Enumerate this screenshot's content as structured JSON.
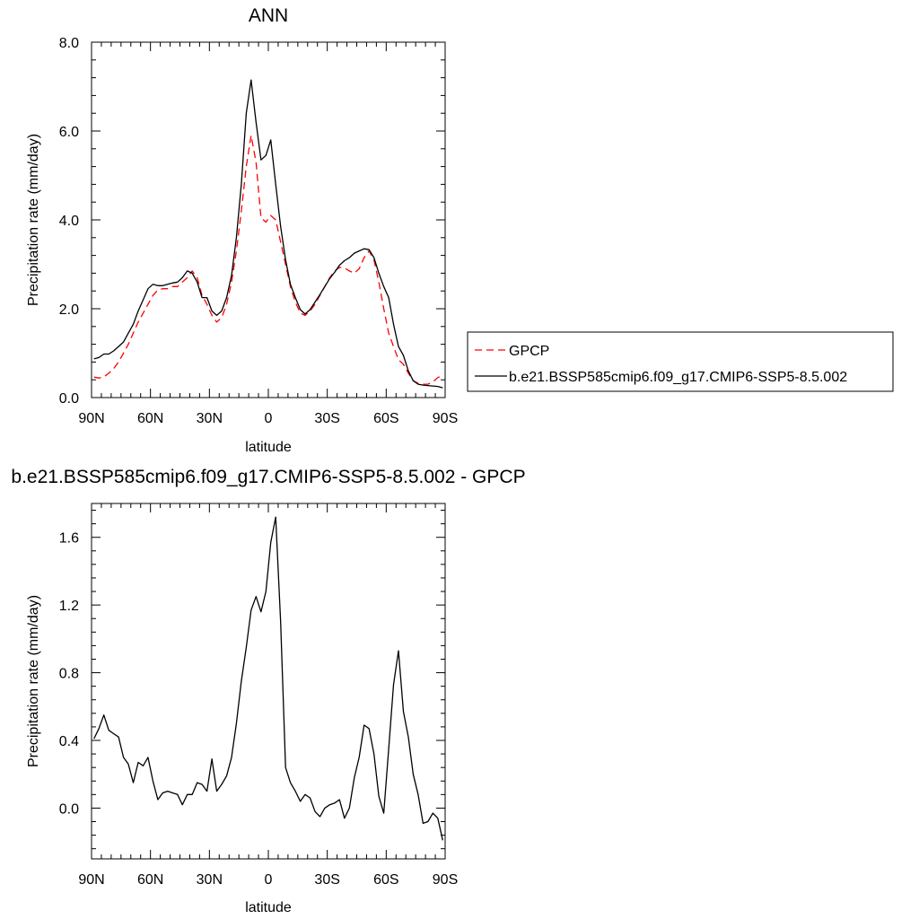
{
  "chart_data": [
    {
      "type": "line",
      "title": "ANN",
      "xlabel": "latitude",
      "ylabel": "Precipitation rate (mm/day)",
      "xlim": [
        90,
        -90
      ],
      "ylim": [
        0,
        8
      ],
      "x_tick_values": [
        90,
        60,
        30,
        0,
        -30,
        -60,
        -90
      ],
      "x_tick_labels": [
        "90N",
        "60N",
        "30N",
        "0",
        "30S",
        "60S",
        "90S"
      ],
      "y_tick_values": [
        0,
        2,
        4,
        6,
        8
      ],
      "y_tick_labels": [
        "0.0",
        "2.0",
        "4.0",
        "6.0",
        "8.0"
      ],
      "grid": false,
      "legend_position": "right",
      "series": [
        {
          "name": "GPCP",
          "color": "#ff0000",
          "style": "dashed",
          "x": [
            88.75,
            86.25,
            83.75,
            81.25,
            78.75,
            76.25,
            73.75,
            71.25,
            68.75,
            66.25,
            63.75,
            61.25,
            58.75,
            56.25,
            53.75,
            51.25,
            48.75,
            46.25,
            43.75,
            41.25,
            38.75,
            36.25,
            33.75,
            31.25,
            28.75,
            26.25,
            23.75,
            21.25,
            18.75,
            16.25,
            13.75,
            11.25,
            8.75,
            6.25,
            3.75,
            1.25,
            -1.25,
            -3.75,
            -6.25,
            -8.75,
            -11.25,
            -13.75,
            -16.25,
            -18.75,
            -21.25,
            -23.75,
            -26.25,
            -28.75,
            -31.25,
            -33.75,
            -36.25,
            -38.75,
            -41.25,
            -43.75,
            -46.25,
            -48.75,
            -51.25,
            -53.75,
            -56.25,
            -58.75,
            -61.25,
            -63.75,
            -66.25,
            -68.75,
            -71.25,
            -73.75,
            -76.25,
            -78.75,
            -81.25,
            -83.75,
            -86.25,
            -88.75
          ],
          "values": [
            0.46,
            0.44,
            0.46,
            0.55,
            0.65,
            0.8,
            1.0,
            1.2,
            1.45,
            1.7,
            1.9,
            2.1,
            2.3,
            2.42,
            2.45,
            2.45,
            2.5,
            2.5,
            2.6,
            2.7,
            2.85,
            2.7,
            2.3,
            2.1,
            1.85,
            1.7,
            1.8,
            2.1,
            2.6,
            3.3,
            4.2,
            5.2,
            5.9,
            5.3,
            4.05,
            3.95,
            4.1,
            4.0,
            3.5,
            3.0,
            2.5,
            2.15,
            1.9,
            1.85,
            1.95,
            2.1,
            2.3,
            2.5,
            2.7,
            2.85,
            2.93,
            2.92,
            2.85,
            2.8,
            2.9,
            3.15,
            3.3,
            3.1,
            2.6,
            2.0,
            1.45,
            1.15,
            0.85,
            0.75,
            0.55,
            0.38,
            0.32,
            0.3,
            0.3,
            0.35,
            0.45,
            0.5
          ]
        },
        {
          "name": "b.e21.BSSP585cmip6.f09_g17.CMIP6-SSP5-8.5.002",
          "color": "#000000",
          "style": "solid",
          "x": [
            88.75,
            86.25,
            83.75,
            81.25,
            78.75,
            76.25,
            73.75,
            71.25,
            68.75,
            66.25,
            63.75,
            61.25,
            58.75,
            56.25,
            53.75,
            51.25,
            48.75,
            46.25,
            43.75,
            41.25,
            38.75,
            36.25,
            33.75,
            31.25,
            28.75,
            26.25,
            23.75,
            21.25,
            18.75,
            16.25,
            13.75,
            11.25,
            8.75,
            6.25,
            3.75,
            1.25,
            -1.25,
            -3.75,
            -6.25,
            -8.75,
            -11.25,
            -13.75,
            -16.25,
            -18.75,
            -21.25,
            -23.75,
            -26.25,
            -28.75,
            -31.25,
            -33.75,
            -36.25,
            -38.75,
            -41.25,
            -43.75,
            -46.25,
            -48.75,
            -51.25,
            -53.75,
            -56.25,
            -58.75,
            -61.25,
            -63.75,
            -66.25,
            -68.75,
            -71.25,
            -73.75,
            -76.25,
            -78.75,
            -81.25,
            -83.75,
            -86.25,
            -88.75
          ],
          "values": [
            0.87,
            0.9,
            0.98,
            0.98,
            1.05,
            1.15,
            1.25,
            1.45,
            1.65,
            1.95,
            2.2,
            2.45,
            2.55,
            2.52,
            2.52,
            2.55,
            2.58,
            2.6,
            2.7,
            2.85,
            2.8,
            2.6,
            2.25,
            2.25,
            1.95,
            1.85,
            1.95,
            2.25,
            2.75,
            3.6,
            4.8,
            6.4,
            7.15,
            6.2,
            5.35,
            5.45,
            5.8,
            4.8,
            3.85,
            3.1,
            2.55,
            2.25,
            1.98,
            1.88,
            1.98,
            2.15,
            2.32,
            2.5,
            2.68,
            2.82,
            2.98,
            3.08,
            3.15,
            3.25,
            3.3,
            3.35,
            3.33,
            3.15,
            2.8,
            2.5,
            2.25,
            1.65,
            1.15,
            0.95,
            0.6,
            0.38,
            0.3,
            0.28,
            0.27,
            0.26,
            0.25,
            0.22
          ]
        }
      ]
    },
    {
      "type": "line",
      "title": "b.e21.BSSP585cmip6.f09_g17.CMIP6-SSP5-8.5.002 - GPCP",
      "xlabel": "latitude",
      "ylabel": "Precipitation rate (mm/day)",
      "xlim": [
        90,
        -90
      ],
      "ylim": [
        -0.3,
        1.8
      ],
      "x_tick_values": [
        90,
        60,
        30,
        0,
        -30,
        -60,
        -90
      ],
      "x_tick_labels": [
        "90N",
        "60N",
        "30N",
        "0",
        "30S",
        "60S",
        "90S"
      ],
      "y_tick_values": [
        0,
        0.4,
        0.8,
        1.2,
        1.6
      ],
      "y_tick_labels": [
        "0.0",
        "0.4",
        "0.8",
        "1.2",
        "1.6"
      ],
      "grid": false,
      "series": [
        {
          "color": "#000000",
          "style": "solid",
          "x": [
            88.75,
            86.25,
            83.75,
            81.25,
            78.75,
            76.25,
            73.75,
            71.25,
            68.75,
            66.25,
            63.75,
            61.25,
            58.75,
            56.25,
            53.75,
            51.25,
            48.75,
            46.25,
            43.75,
            41.25,
            38.75,
            36.25,
            33.75,
            31.25,
            28.75,
            26.25,
            23.75,
            21.25,
            18.75,
            16.25,
            13.75,
            11.25,
            8.75,
            6.25,
            3.75,
            1.25,
            -1.25,
            -3.75,
            -6.25,
            -8.75,
            -11.25,
            -13.75,
            -16.25,
            -18.75,
            -21.25,
            -23.75,
            -26.25,
            -28.75,
            -31.25,
            -33.75,
            -36.25,
            -38.75,
            -41.25,
            -43.75,
            -46.25,
            -48.75,
            -51.25,
            -53.75,
            -56.25,
            -58.75,
            -61.25,
            -63.75,
            -66.25,
            -68.75,
            -71.25,
            -73.75,
            -76.25,
            -78.75,
            -81.25,
            -83.75,
            -86.25,
            -88.75
          ],
          "values": [
            0.41,
            0.47,
            0.55,
            0.46,
            0.44,
            0.42,
            0.3,
            0.26,
            0.15,
            0.27,
            0.25,
            0.3,
            0.16,
            0.05,
            0.09,
            0.1,
            0.09,
            0.08,
            0.02,
            0.08,
            0.08,
            0.15,
            0.14,
            0.1,
            0.29,
            0.1,
            0.14,
            0.19,
            0.3,
            0.5,
            0.75,
            0.95,
            1.17,
            1.25,
            1.16,
            1.28,
            1.57,
            1.72,
            1.1,
            0.24,
            0.15,
            0.1,
            0.04,
            0.08,
            0.06,
            -0.02,
            -0.05,
            0.0,
            0.02,
            0.03,
            0.05,
            -0.06,
            0.0,
            0.18,
            0.3,
            0.49,
            0.47,
            0.32,
            0.07,
            -0.03,
            0.35,
            0.73,
            0.93,
            0.57,
            0.42,
            0.2,
            0.08,
            -0.09,
            -0.08,
            -0.03,
            -0.06,
            -0.19
          ]
        }
      ]
    }
  ]
}
